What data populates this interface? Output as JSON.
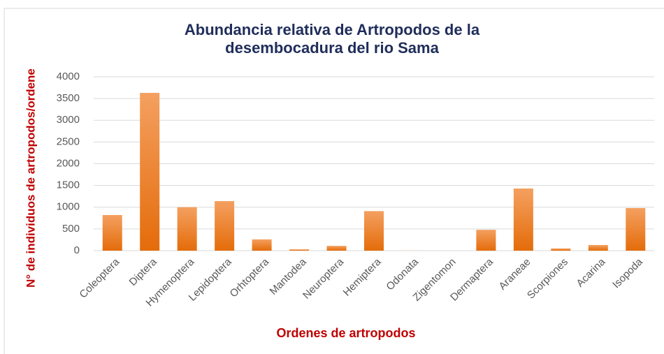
{
  "chart_data": {
    "type": "bar",
    "title": "Abundancia relativa de Artropodos de la desembocadura del rio Sama",
    "x_label": "Ordenes de artropodos",
    "y_label": "N° de individuos de artropodos/ordene",
    "categories": [
      "Coleoptera",
      "Diptera",
      "Hymenoptera",
      "Lepidoptera",
      "Orhtoptera",
      "Mantodea",
      "Neuroptera",
      "Hemiptera",
      "Odonata",
      "Zigentomon",
      "Dermaptera",
      "Araneae",
      "Scorpiones",
      "Acarina",
      "Isopoda"
    ],
    "values": [
      820,
      3630,
      1000,
      1140,
      260,
      30,
      110,
      910,
      2,
      0,
      480,
      1430,
      50,
      130,
      980
    ],
    "color": "#ed7d31",
    "ylim": [
      0,
      4000
    ],
    "yticks": [
      0,
      500,
      1000,
      1500,
      2000,
      2500,
      3000,
      3500,
      4000
    ],
    "grid": true
  }
}
